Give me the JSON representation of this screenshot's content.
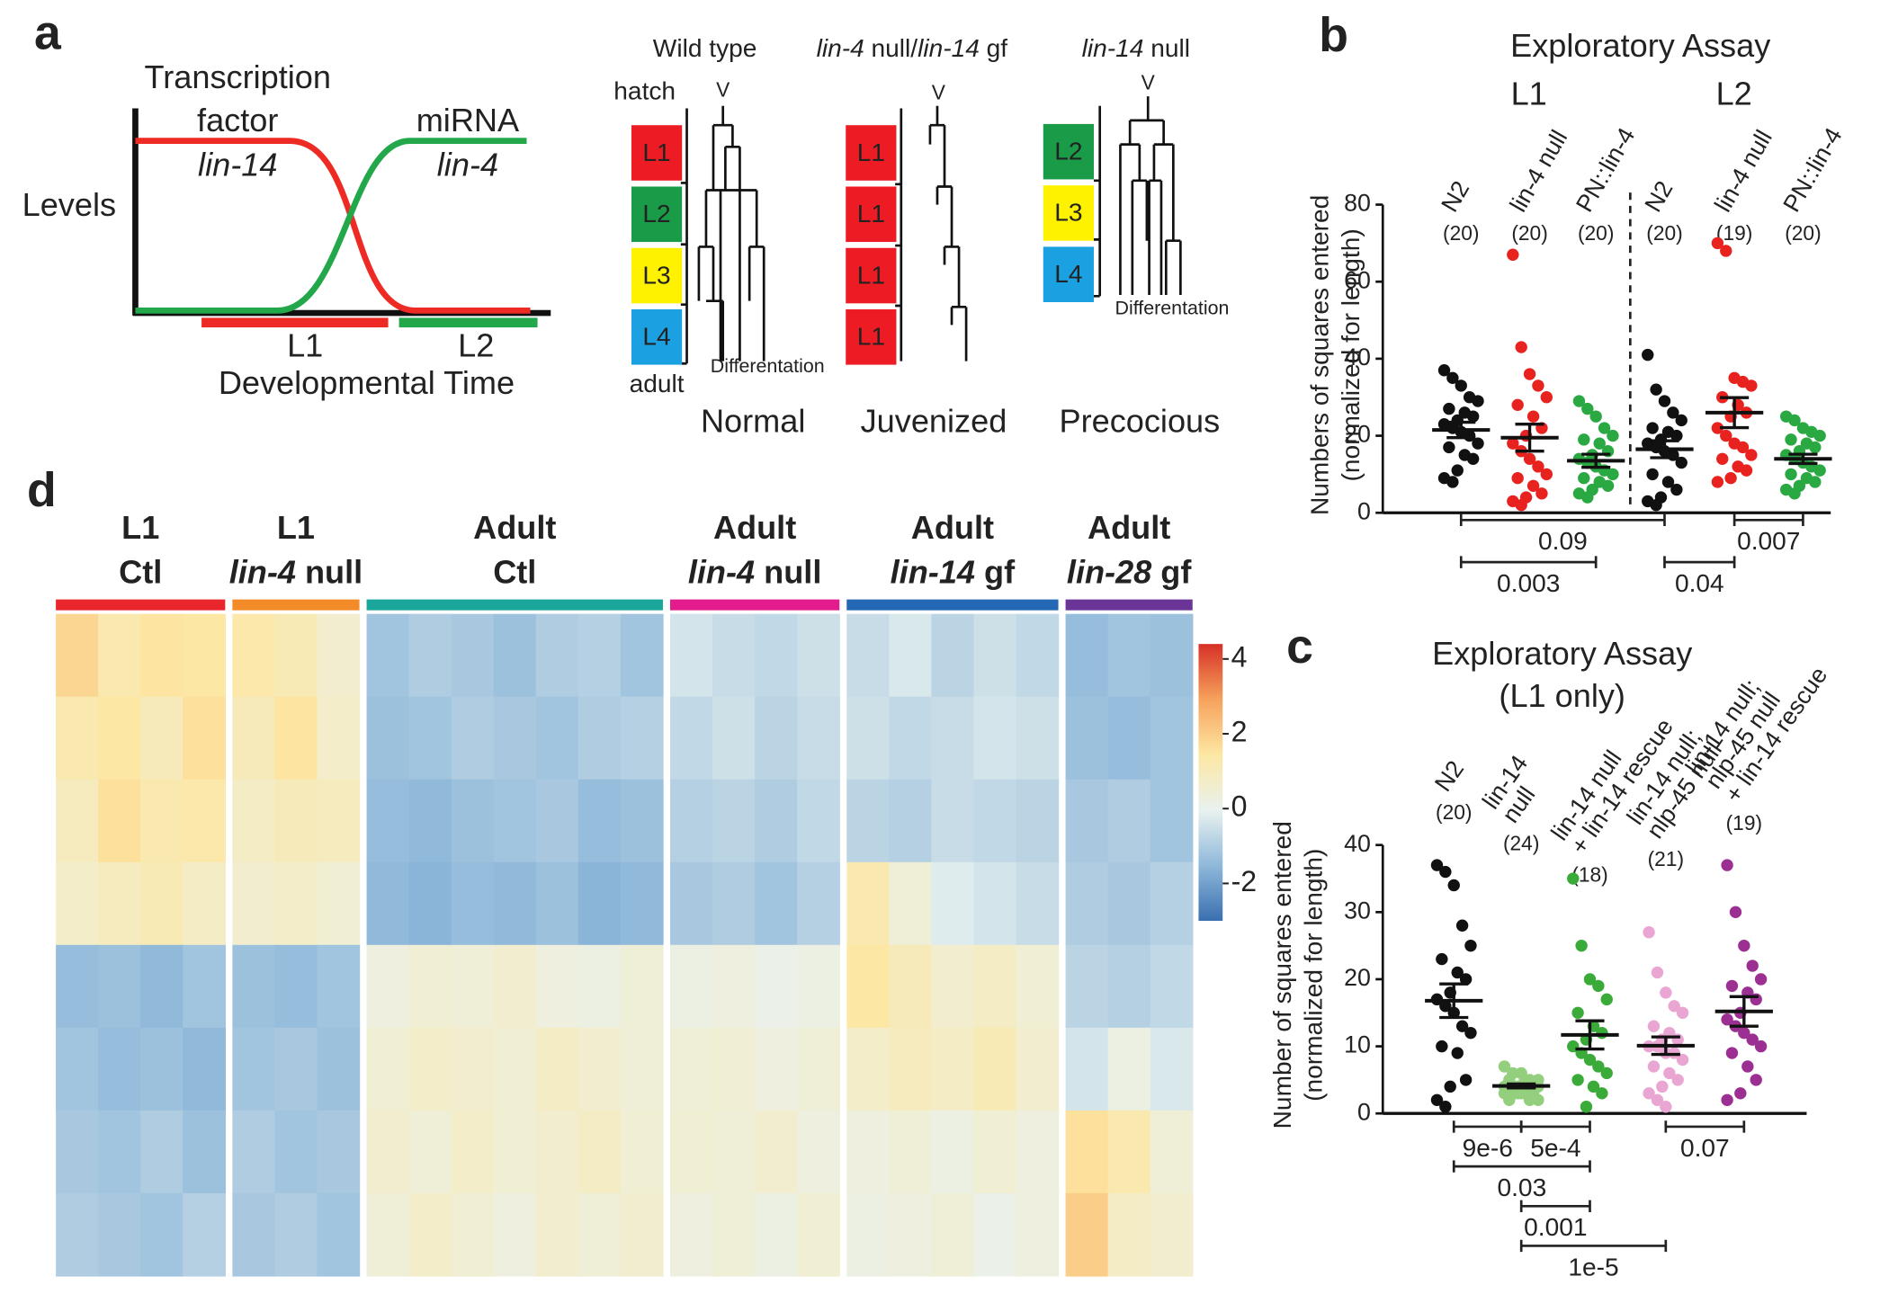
{
  "panel_labels": [
    "a",
    "b",
    "c",
    "d"
  ],
  "schematic": {
    "tf_label": [
      "Transcription",
      "factor"
    ],
    "tf_gene": "lin-14",
    "mirna_label": "miRNA",
    "mirna_gene": "lin-4",
    "y_label": "Levels",
    "stages": [
      "L1",
      "L2"
    ],
    "x_label": "Developmental Time",
    "tf_color": "#ee2a24",
    "mirna_color": "#22a84a"
  },
  "lineage": {
    "hatch": "hatch",
    "adult": "adult",
    "seam_cell": "V",
    "differentiation": "Differentation",
    "stage_colors": {
      "L1": "#ed1c24",
      "L2": "#1a9b48",
      "L3": "#fff200",
      "L4": "#1ba1e2"
    },
    "columns": [
      {
        "title": [
          {
            "text": "Wild type"
          }
        ],
        "stages": [
          "L1",
          "L2",
          "L3",
          "L4"
        ],
        "phenotype": "Normal"
      },
      {
        "title": [
          {
            "text": "lin-4",
            "italic": true
          },
          {
            "text": " null/"
          },
          {
            "text": "lin-14",
            "italic": true
          },
          {
            "text": " gf"
          }
        ],
        "stages": [
          "L1",
          "L1",
          "L1",
          "L1"
        ],
        "phenotype": "Juvenized"
      },
      {
        "title": [
          {
            "text": "lin-14",
            "italic": true
          },
          {
            "text": " null"
          }
        ],
        "stages": [
          "L2",
          "L3",
          "L4"
        ],
        "phenotype": "Precocious"
      }
    ]
  },
  "chart_data": [
    {
      "type": "strip",
      "title": "Exploratory Assay",
      "group_labels": [
        "L1",
        "L2"
      ],
      "y_label": [
        "Numbers of squares entered",
        "(normalized for length)"
      ],
      "ylim": [
        0,
        80
      ],
      "yticks": [
        0,
        20,
        40,
        60,
        80
      ],
      "series": [
        {
          "name": [
            "N2"
          ],
          "n_label": "(20)",
          "color": "#111111",
          "mean": 21.5,
          "sem": 2.0,
          "values": [
            37,
            35,
            33,
            30,
            29,
            27,
            26,
            25,
            24,
            23,
            22,
            21,
            20,
            18,
            17,
            15,
            14,
            11,
            9,
            8
          ]
        },
        {
          "name": [
            "lin-4 null"
          ],
          "n_label": "(20)",
          "color": "#e8231f",
          "mean": 19.5,
          "sem": 3.5,
          "values": [
            67,
            43,
            36,
            33,
            30,
            28,
            25,
            22,
            20,
            18,
            16,
            14,
            12,
            10,
            9,
            7,
            5,
            4,
            3,
            2
          ]
        },
        {
          "name": [
            "PN::lin-4"
          ],
          "n_label": "(20)",
          "color": "#2aa842",
          "mean": 13.5,
          "sem": 1.7,
          "values": [
            29,
            27,
            25,
            22,
            20,
            19,
            18,
            16,
            15,
            14,
            13,
            12,
            11,
            10,
            9,
            8,
            7,
            6,
            5,
            4
          ]
        },
        {
          "name": [
            "N2"
          ],
          "n_label": "(20)",
          "color": "#111111",
          "mean": 16.5,
          "sem": 2.2,
          "values": [
            41,
            32,
            29,
            26,
            24,
            22,
            21,
            20,
            19,
            18,
            17,
            16,
            15,
            13,
            10,
            8,
            6,
            4,
            3,
            2
          ]
        },
        {
          "name": [
            "lin-4 null"
          ],
          "n_label": "(19)",
          "color": "#e8231f",
          "mean": 26,
          "sem": 3.9,
          "values": [
            70,
            68,
            35,
            34,
            33,
            30,
            28,
            26,
            25,
            22,
            20,
            18,
            17,
            15,
            14,
            12,
            11,
            9,
            8
          ]
        },
        {
          "name": [
            "PN::lin-4"
          ],
          "n_label": "(20)",
          "color": "#2aa842",
          "mean": 14,
          "sem": 1.2,
          "values": [
            25,
            24,
            22,
            21,
            20,
            19,
            18,
            17,
            16,
            15,
            14,
            13,
            12,
            11,
            10,
            9,
            8,
            7,
            6,
            5
          ]
        }
      ],
      "comparisons": [
        [
          {
            "between": [
              0,
              3
            ],
            "label": "0.09"
          },
          {
            "between": [
              4,
              5
            ],
            "label": "0.007"
          }
        ],
        [
          {
            "between": [
              0,
              2
            ],
            "label": "0.003"
          },
          {
            "between": [
              3,
              4
            ],
            "label": "0.04"
          }
        ]
      ]
    },
    {
      "type": "strip",
      "title": "Exploratory Assay",
      "subtitle": "(L1 only)",
      "y_label": [
        "Number of squares entered",
        "(normalized for length)"
      ],
      "ylim": [
        0,
        40
      ],
      "yticks": [
        0,
        10,
        20,
        30,
        40
      ],
      "series": [
        {
          "name": [
            "N2"
          ],
          "n_label": "(20)",
          "color": "#111111",
          "mean": 16.8,
          "sem": 2.5,
          "values": [
            37,
            36,
            34,
            28,
            25,
            23,
            21,
            20,
            18,
            17,
            16,
            15,
            13,
            12,
            10,
            9,
            5,
            4,
            2,
            1
          ]
        },
        {
          "name": [
            "lin-14",
            "null"
          ],
          "n_label": "(24)",
          "color": "#93cf7c",
          "mean": 4.1,
          "sem": 0.3,
          "values": [
            7,
            6,
            6,
            5,
            5,
            5,
            5,
            4,
            4,
            4,
            4,
            4,
            4,
            4,
            4,
            3,
            3,
            3,
            3,
            3,
            3,
            2,
            2,
            2
          ]
        },
        {
          "name": [
            "lin-14 null",
            "+ lin-14 rescue"
          ],
          "n_label": "(18)",
          "color": "#3aab38",
          "mean": 11.7,
          "sem": 2.1,
          "values": [
            35,
            25,
            20,
            19,
            17,
            15,
            13,
            12,
            11,
            10,
            9,
            8,
            7,
            6,
            5,
            4,
            3,
            1
          ]
        },
        {
          "name": [
            "lin-14 null;",
            "nlp-45 null"
          ],
          "n_label": "(21)",
          "color": "#eaa6d2",
          "mean": 10.1,
          "sem": 1.3,
          "values": [
            27,
            21,
            18,
            16,
            15,
            13,
            12,
            11,
            11,
            10,
            10,
            9,
            9,
            8,
            7,
            6,
            5,
            4,
            3,
            2,
            1
          ]
        },
        {
          "name": [
            "lin-14 null;",
            "nlp-45 null",
            "+ lin-14 rescue"
          ],
          "n_label": "(19)",
          "color": "#9b2f92",
          "mean": 15.2,
          "sem": 2.2,
          "values": [
            37,
            30,
            25,
            22,
            20,
            19,
            18,
            17,
            15,
            14,
            13,
            12,
            11,
            10,
            9,
            7,
            5,
            3,
            2
          ]
        }
      ],
      "comparisons": [
        [
          {
            "between": [
              0,
              1
            ],
            "label": "9e-6"
          },
          {
            "between": [
              1,
              2
            ],
            "label": "5e-4"
          },
          {
            "between": [
              3,
              4
            ],
            "label": "0.07"
          }
        ],
        [
          {
            "between": [
              0,
              2
            ],
            "label": "0.03"
          }
        ],
        [
          {
            "between": [
              1,
              2
            ],
            "label": "0.001"
          }
        ],
        [
          {
            "between": [
              1,
              3
            ],
            "label": "1e-5"
          }
        ]
      ]
    },
    {
      "type": "heatmap",
      "zlim": [
        -3,
        4.4
      ],
      "zticks": [
        4,
        2,
        0,
        -2
      ],
      "colormap": [
        "#3a6fb0",
        "#8fb8da",
        "#e9f2ef",
        "#fde7a3",
        "#f6a25c",
        "#d73027"
      ],
      "groups": [
        {
          "label": [
            [
              {
                "text": "L1"
              }
            ],
            [
              {
                "text": "Ctl"
              }
            ]
          ],
          "color": "#e8262b",
          "values": [
            [
              1.8,
              1.2,
              1.5,
              1.4
            ],
            [
              1.2,
              1.4,
              1.0,
              1.6
            ],
            [
              0.9,
              1.6,
              1.2,
              1.3
            ],
            [
              0.7,
              0.9,
              1.1,
              0.8
            ],
            [
              -1.4,
              -1.3,
              -1.5,
              -1.2
            ],
            [
              -1.2,
              -1.4,
              -1.3,
              -1.5
            ],
            [
              -1.1,
              -1.2,
              -1.0,
              -1.3
            ],
            [
              -1.0,
              -1.1,
              -1.2,
              -0.9
            ]
          ]
        },
        {
          "label": [
            [
              {
                "text": "L1"
              }
            ],
            [
              {
                "text": "lin-4",
                "italic": true
              },
              {
                "text": " null"
              }
            ]
          ],
          "color": "#f28b28",
          "values": [
            [
              1.3,
              1.1,
              0.6
            ],
            [
              1.0,
              1.5,
              0.7
            ],
            [
              0.8,
              1.0,
              0.9
            ],
            [
              0.6,
              0.7,
              0.5
            ],
            [
              -1.3,
              -1.4,
              -1.2
            ],
            [
              -1.2,
              -1.1,
              -1.3
            ],
            [
              -1.0,
              -1.2,
              -1.1
            ],
            [
              -1.1,
              -1.0,
              -1.2
            ]
          ]
        },
        {
          "label": [
            [
              {
                "text": "Adult"
              }
            ],
            [
              {
                "text": "Ctl"
              }
            ]
          ],
          "color": "#1aa69a",
          "values": [
            [
              -1.2,
              -1.0,
              -1.1,
              -1.3,
              -1.0,
              -0.9,
              -1.2
            ],
            [
              -1.3,
              -1.2,
              -1.0,
              -1.1,
              -1.2,
              -1.0,
              -0.9
            ],
            [
              -1.4,
              -1.5,
              -1.3,
              -1.2,
              -1.1,
              -1.4,
              -1.3
            ],
            [
              -1.5,
              -1.6,
              -1.4,
              -1.5,
              -1.3,
              -1.6,
              -1.5
            ],
            [
              0.3,
              0.5,
              0.4,
              0.6,
              0.3,
              0.2,
              0.4
            ],
            [
              0.5,
              0.7,
              0.6,
              0.5,
              0.8,
              0.6,
              0.4
            ],
            [
              0.6,
              0.4,
              0.7,
              0.5,
              0.6,
              0.8,
              0.5
            ],
            [
              0.4,
              0.7,
              0.5,
              0.3,
              0.6,
              0.4,
              0.6
            ]
          ]
        },
        {
          "label": [
            [
              {
                "text": "Adult"
              }
            ],
            [
              {
                "text": "lin-4",
                "italic": true
              },
              {
                "text": " null"
              }
            ]
          ],
          "color": "#e31b8c",
          "values": [
            [
              -0.4,
              -0.6,
              -0.7,
              -0.5
            ],
            [
              -0.7,
              -0.5,
              -0.8,
              -0.6
            ],
            [
              -0.9,
              -0.8,
              -1.0,
              -0.7
            ],
            [
              -1.1,
              -1.0,
              -1.2,
              -0.9
            ],
            [
              0.2,
              0.3,
              0.1,
              0.2
            ],
            [
              0.4,
              0.5,
              0.3,
              0.4
            ],
            [
              0.5,
              0.4,
              0.6,
              0.3
            ],
            [
              0.3,
              0.4,
              0.2,
              0.5
            ]
          ]
        },
        {
          "label": [
            [
              {
                "text": "Adult"
              }
            ],
            [
              {
                "text": "lin-14",
                "italic": true
              },
              {
                "text": " gf"
              }
            ]
          ],
          "color": "#2367b5",
          "values": [
            [
              -0.6,
              -0.3,
              -0.8,
              -0.5,
              -0.7
            ],
            [
              -0.5,
              -0.7,
              -0.6,
              -0.4,
              -0.5
            ],
            [
              -0.8,
              -0.9,
              -0.6,
              -0.7,
              -0.8
            ],
            [
              1.2,
              0.4,
              -0.2,
              -0.4,
              -0.6
            ],
            [
              1.4,
              1.0,
              0.6,
              0.8,
              0.5
            ],
            [
              0.7,
              0.9,
              0.8,
              1.1,
              0.6
            ],
            [
              0.3,
              0.4,
              0.2,
              0.5,
              0.3
            ],
            [
              0.2,
              0.3,
              0.4,
              0.1,
              0.3
            ]
          ]
        },
        {
          "label": [
            [
              {
                "text": "Adult"
              }
            ],
            [
              {
                "text": "lin-28",
                "italic": true
              },
              {
                "text": " gf"
              }
            ]
          ],
          "color": "#6a3597",
          "values": [
            [
              -1.4,
              -1.2,
              -1.3
            ],
            [
              -1.3,
              -1.4,
              -1.2
            ],
            [
              -1.1,
              -1.0,
              -1.2
            ],
            [
              -1.0,
              -1.1,
              -0.9
            ],
            [
              -0.8,
              -0.9,
              -0.7
            ],
            [
              -0.4,
              0.2,
              -0.3
            ],
            [
              1.6,
              1.2,
              0.4
            ],
            [
              2.0,
              0.8,
              0.6
            ]
          ]
        }
      ]
    }
  ]
}
